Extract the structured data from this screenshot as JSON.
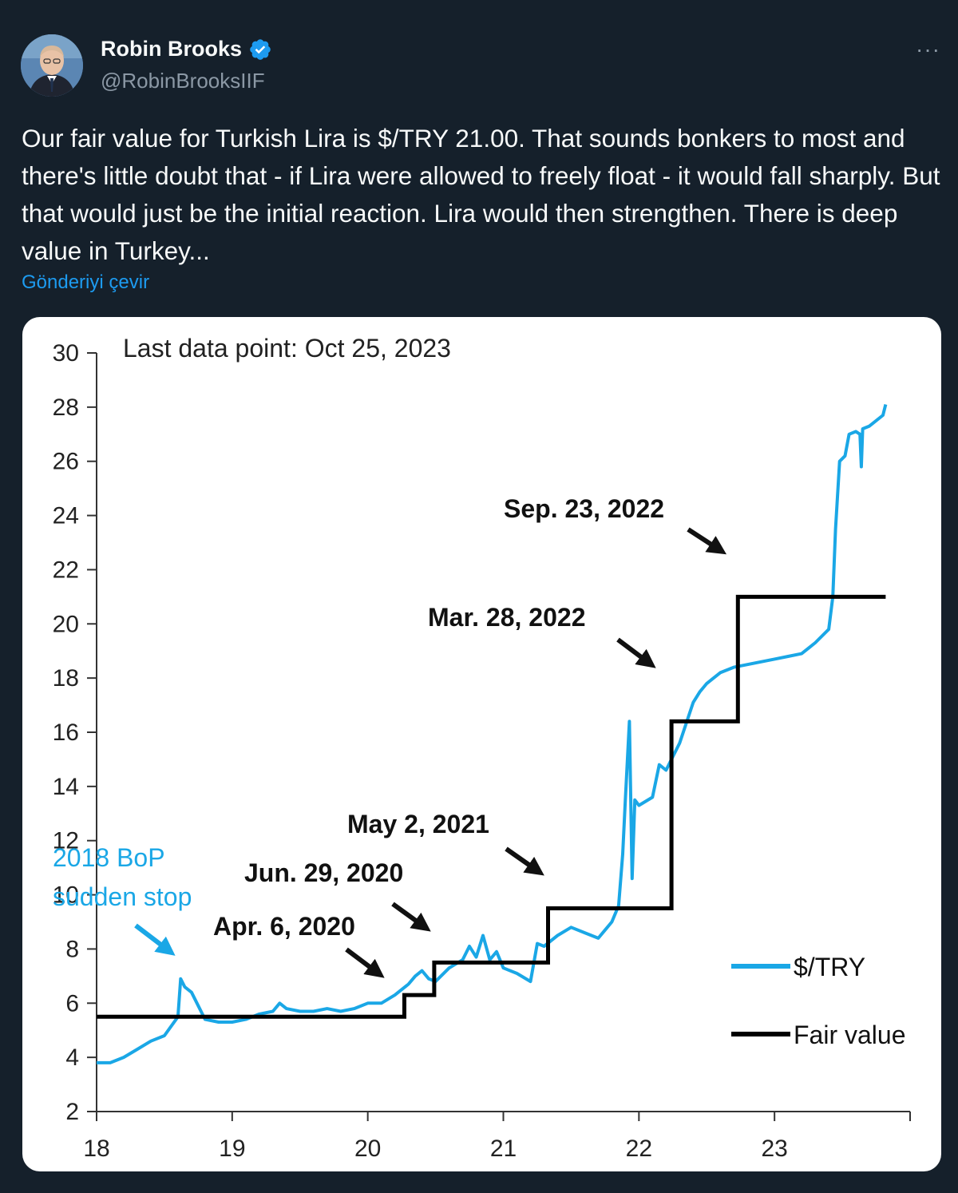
{
  "tweet": {
    "display_name": "Robin Brooks",
    "handle": "@RobinBrooksIIF",
    "more_label": "···",
    "text": "Our fair value for Turkish Lira is $/TRY 21.00. That sounds bonkers to most and there's little doubt that - if Lira were allowed to freely float - it would fall sharply. But that would just be the initial reaction. Lira would then strengthen. There is deep value in Turkey...",
    "translate_label": "Gönderiyi çevir",
    "icons": {
      "avatar": "avatar-photo",
      "verified": "verified-badge-icon",
      "more": "more-options-icon"
    },
    "colors": {
      "background": "#15202b",
      "link": "#1d9bf0",
      "verified": "#1d9bf0"
    }
  },
  "chart_data": {
    "type": "line",
    "note": "Last data point: Oct 25, 2023",
    "x_ticks": [
      "18",
      "19",
      "20",
      "21",
      "22",
      "23"
    ],
    "y_ticks": [
      "2",
      "4",
      "6",
      "8",
      "10",
      "12",
      "14",
      "16",
      "18",
      "20",
      "22",
      "24",
      "26",
      "28",
      "30"
    ],
    "xlim": [
      18,
      24
    ],
    "ylim": [
      2,
      30
    ],
    "series": [
      {
        "name": "$/TRY",
        "color": "#1aa7e6",
        "points": [
          [
            18.0,
            3.8
          ],
          [
            18.1,
            3.8
          ],
          [
            18.2,
            4.0
          ],
          [
            18.3,
            4.3
          ],
          [
            18.4,
            4.6
          ],
          [
            18.5,
            4.8
          ],
          [
            18.6,
            5.5
          ],
          [
            18.62,
            6.9
          ],
          [
            18.65,
            6.6
          ],
          [
            18.7,
            6.4
          ],
          [
            18.75,
            5.9
          ],
          [
            18.8,
            5.4
          ],
          [
            18.9,
            5.3
          ],
          [
            19.0,
            5.3
          ],
          [
            19.1,
            5.4
          ],
          [
            19.2,
            5.6
          ],
          [
            19.3,
            5.7
          ],
          [
            19.35,
            6.0
          ],
          [
            19.4,
            5.8
          ],
          [
            19.5,
            5.7
          ],
          [
            19.6,
            5.7
          ],
          [
            19.7,
            5.8
          ],
          [
            19.8,
            5.7
          ],
          [
            19.9,
            5.8
          ],
          [
            20.0,
            6.0
          ],
          [
            20.1,
            6.0
          ],
          [
            20.2,
            6.3
          ],
          [
            20.3,
            6.7
          ],
          [
            20.35,
            7.0
          ],
          [
            20.4,
            7.2
          ],
          [
            20.45,
            6.9
          ],
          [
            20.5,
            6.8
          ],
          [
            20.6,
            7.3
          ],
          [
            20.7,
            7.6
          ],
          [
            20.75,
            8.1
          ],
          [
            20.8,
            7.7
          ],
          [
            20.85,
            8.5
          ],
          [
            20.9,
            7.6
          ],
          [
            20.95,
            7.9
          ],
          [
            21.0,
            7.3
          ],
          [
            21.1,
            7.1
          ],
          [
            21.2,
            6.8
          ],
          [
            21.25,
            8.2
          ],
          [
            21.3,
            8.1
          ],
          [
            21.4,
            8.5
          ],
          [
            21.5,
            8.8
          ],
          [
            21.6,
            8.6
          ],
          [
            21.7,
            8.4
          ],
          [
            21.75,
            8.7
          ],
          [
            21.8,
            9.0
          ],
          [
            21.85,
            9.6
          ],
          [
            21.88,
            11.5
          ],
          [
            21.9,
            13.5
          ],
          [
            21.93,
            16.4
          ],
          [
            21.95,
            10.6
          ],
          [
            21.97,
            13.5
          ],
          [
            22.0,
            13.3
          ],
          [
            22.1,
            13.6
          ],
          [
            22.15,
            14.8
          ],
          [
            22.2,
            14.6
          ],
          [
            22.3,
            15.6
          ],
          [
            22.4,
            17.1
          ],
          [
            22.45,
            17.5
          ],
          [
            22.5,
            17.8
          ],
          [
            22.6,
            18.2
          ],
          [
            22.7,
            18.4
          ],
          [
            22.8,
            18.5
          ],
          [
            22.9,
            18.6
          ],
          [
            23.0,
            18.7
          ],
          [
            23.1,
            18.8
          ],
          [
            23.2,
            18.9
          ],
          [
            23.3,
            19.3
          ],
          [
            23.4,
            19.8
          ],
          [
            23.43,
            21.0
          ],
          [
            23.45,
            23.5
          ],
          [
            23.48,
            26.0
          ],
          [
            23.52,
            26.2
          ],
          [
            23.55,
            27.0
          ],
          [
            23.6,
            27.1
          ],
          [
            23.63,
            27.0
          ],
          [
            23.64,
            25.8
          ],
          [
            23.65,
            27.2
          ],
          [
            23.7,
            27.3
          ],
          [
            23.8,
            27.7
          ],
          [
            23.82,
            28.1
          ]
        ]
      },
      {
        "name": "Fair value",
        "color": "#000000",
        "step": true,
        "points": [
          [
            18.0,
            5.5
          ],
          [
            20.27,
            5.5
          ],
          [
            20.27,
            6.3
          ],
          [
            20.49,
            6.3
          ],
          [
            20.49,
            7.5
          ],
          [
            21.33,
            7.5
          ],
          [
            21.33,
            9.5
          ],
          [
            22.24,
            9.5
          ],
          [
            22.24,
            16.4
          ],
          [
            22.73,
            16.4
          ],
          [
            22.73,
            21.0
          ],
          [
            23.82,
            21.0
          ]
        ]
      }
    ],
    "legend": {
      "position": "bottom-right",
      "items": [
        "$/TRY",
        "Fair value"
      ]
    },
    "annotations": [
      {
        "text": "2018 BoP",
        "color": "#1aa7e6"
      },
      {
        "text": "sudden stop",
        "color": "#1aa7e6"
      },
      {
        "text": "Apr. 6, 2020"
      },
      {
        "text": "Jun. 29, 2020"
      },
      {
        "text": "May 2, 2021"
      },
      {
        "text": "Mar. 28, 2022"
      },
      {
        "text": "Sep. 23, 2022"
      }
    ]
  }
}
